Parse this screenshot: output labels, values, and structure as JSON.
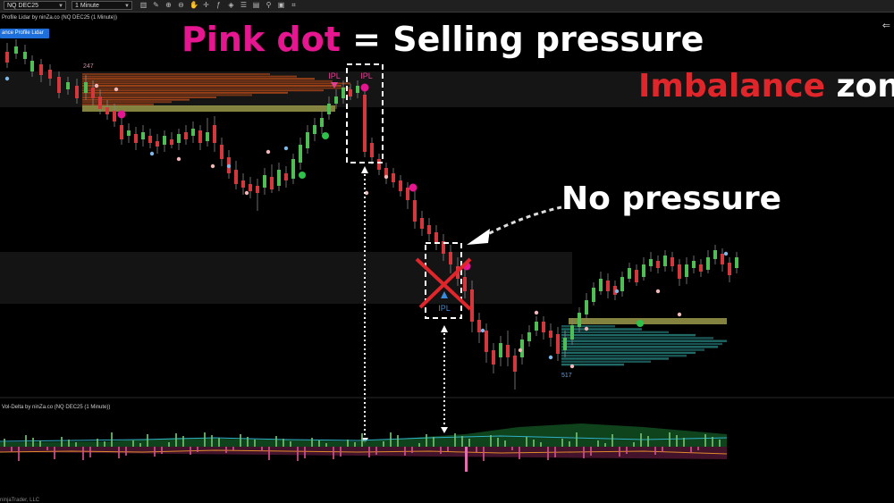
{
  "toolbar": {
    "instrument": "NQ DEC25",
    "timeframe": "1 Minute",
    "icons": [
      "bar-chart-icon",
      "drawing-tools-icon",
      "zoom-in-icon",
      "zoom-out-icon",
      "hand-pan-icon",
      "crosshair-icon",
      "indicator-icon",
      "strategy-icon",
      "chart-properties-icon",
      "template-icon",
      "attach-icon",
      "snapshot-icon",
      "shortcuts-icon"
    ]
  },
  "price_panel": {
    "title": "Profile Lidar by ninZa.co (NQ DEC25 (1 Minute))",
    "button_label": "ance Profile Lidar"
  },
  "volume_panel": {
    "title": "Vol-Delta by ninZa.co (NQ DEC25 (1 Minute))"
  },
  "footer": "ninjaTrader, LLC",
  "annotations": {
    "headline_pink": "Pink dot",
    "headline_eq": " = Selling pressure",
    "imbalance_red": "Imbalance",
    "imbalance_white": " zone",
    "no_pressure": "No pressure",
    "ipl_top_left": "IPL",
    "ipl_top_box": "IPL",
    "ipl_bottom": "IPL",
    "level_high": "247",
    "level_low": "517"
  },
  "colors": {
    "pink": "#e5168f",
    "red": "#e0262a",
    "bull": "#4fbf55",
    "bear": "#d4383c",
    "profile_orange": "#c8501a",
    "profile_teal": "#2a8c8a",
    "zone_olive": "#9a9a4a"
  }
}
